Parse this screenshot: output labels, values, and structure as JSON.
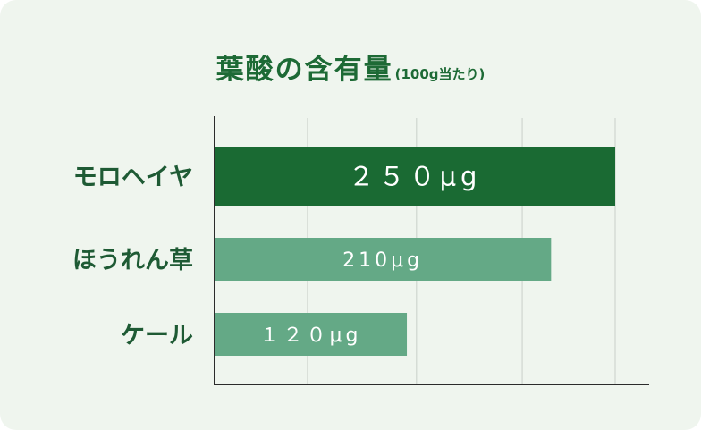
{
  "chart_data": {
    "type": "bar",
    "orientation": "horizontal",
    "title": "葉酸の含有量",
    "subtitle": "(100g当たり)",
    "categories": [
      "モロヘイヤ",
      "ほうれん草",
      "ケール"
    ],
    "values": [
      250,
      210,
      120
    ],
    "data_labels": [
      "２５０μg",
      "210μg",
      "１２０μg"
    ],
    "unit": "μg",
    "xlim": [
      0,
      250
    ],
    "grid": true,
    "legend": "none",
    "colors": {
      "highlight": "#1a6a33",
      "bar": "#64a986",
      "gridline": "#cfd6cf",
      "axis": "#2b2b2b",
      "title": "#1d6a35",
      "category_label": "#1e5a34",
      "card_background": "#eff5ee"
    }
  }
}
